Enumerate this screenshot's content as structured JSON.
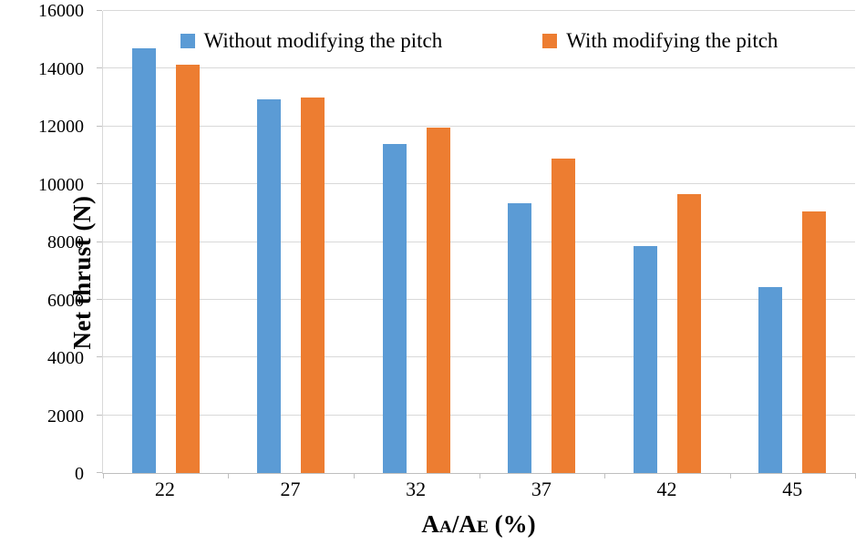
{
  "chart_data": {
    "type": "bar",
    "title": "",
    "categories": [
      "22",
      "27",
      "32",
      "37",
      "42",
      "45"
    ],
    "series": [
      {
        "name": "Without modifying the pitch",
        "color": "#5B9BD5",
        "values": [
          14700,
          12950,
          11400,
          9350,
          7850,
          6450
        ]
      },
      {
        "name": "With modifying the pitch",
        "color": "#ED7D31",
        "values": [
          14150,
          13000,
          11950,
          10900,
          9650,
          9050
        ]
      }
    ],
    "ylabel": "Net thrust (N)",
    "xlabel_text": "AA/AE (%)",
    "xlabel_parts": {
      "p1": "A",
      "s1": "A",
      "p2": "/A",
      "s2": "E",
      "p3": " (%)"
    },
    "ylim": [
      0,
      16000
    ],
    "ytick_step": 2000,
    "grid": true,
    "legend_position": "top-inside",
    "gridline_color": "#D9D9D9",
    "axis_color": "#BFBFBF"
  }
}
